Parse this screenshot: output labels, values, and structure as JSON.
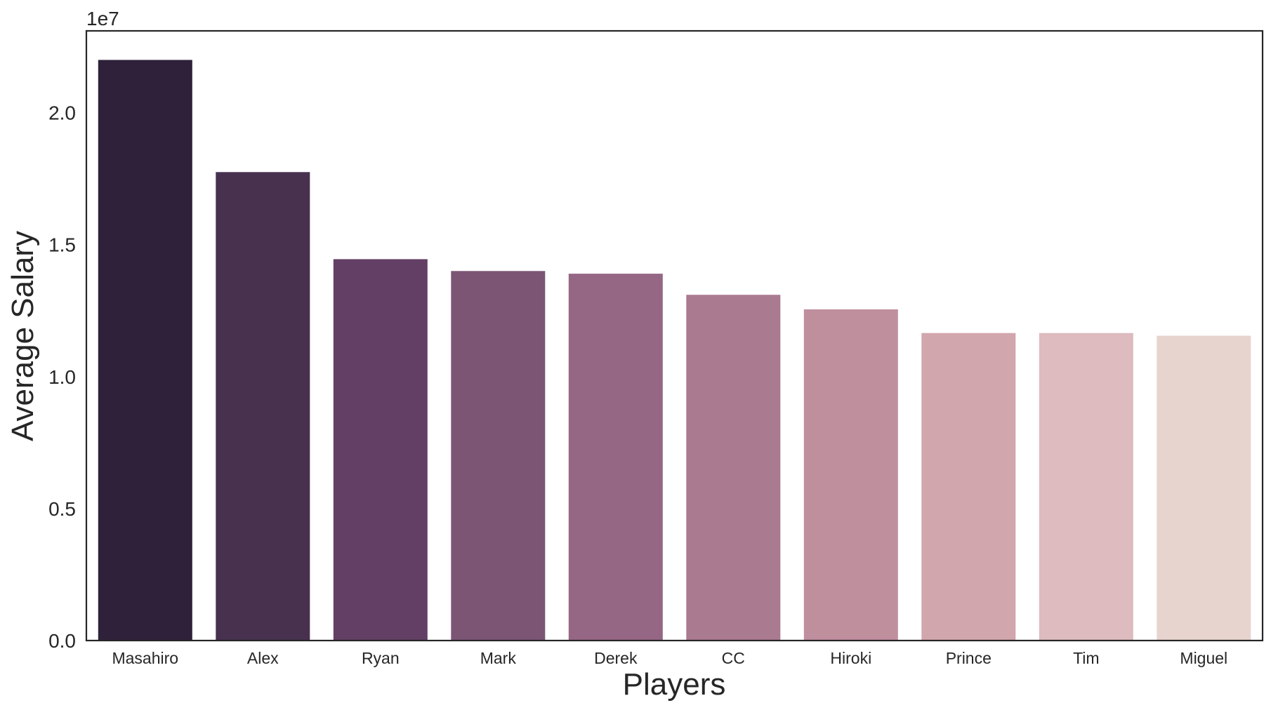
{
  "chart_data": {
    "type": "bar",
    "xlabel": "Players",
    "ylabel": "Average Salary",
    "offset_text": "1e7",
    "categories": [
      "Masahiro",
      "Alex",
      "Ryan",
      "Mark",
      "Derek",
      "CC",
      "Hiroki",
      "Prince",
      "Tim",
      "Miguel"
    ],
    "values": [
      22000000,
      17750000,
      14450000,
      14000000,
      13900000,
      13100000,
      12550000,
      11650000,
      11650000,
      11550000
    ],
    "colors": [
      "#2f213a",
      "#47314f",
      "#633f65",
      "#7c5575",
      "#956784",
      "#aa7a91",
      "#c08f9e",
      "#d1a6ad",
      "#ddbbbf",
      "#e8d4cf"
    ],
    "yticks": [
      0,
      5000000,
      10000000,
      15000000,
      20000000
    ],
    "ytick_labels": [
      "0.0",
      "0.5",
      "1.0",
      "1.5",
      "2.0"
    ],
    "ylim": [
      0,
      23100000
    ],
    "grid": false,
    "legend": "none"
  }
}
